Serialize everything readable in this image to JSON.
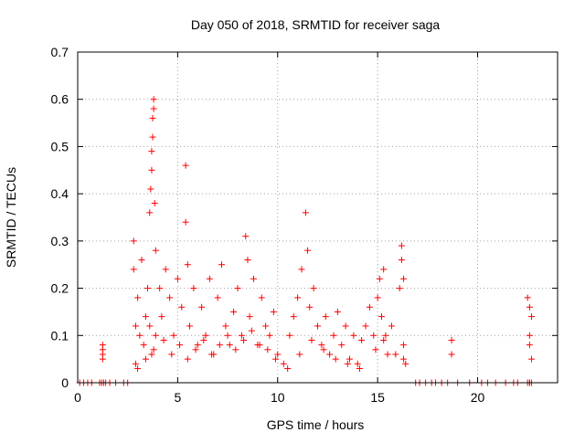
{
  "chart_data": {
    "type": "scatter",
    "title": "Day 050 of 2018, SRMTID for receiver saga",
    "xlabel": "GPS time / hours",
    "ylabel": "SRMTID / TECUs",
    "xlim": [
      0,
      24
    ],
    "ylim": [
      0,
      0.7
    ],
    "xticks": [
      0,
      5,
      10,
      15,
      20
    ],
    "yticks": [
      0,
      0.1,
      0.2,
      0.3,
      0.4,
      0.5,
      0.6,
      0.7
    ],
    "xtick_labels": [
      "0",
      "5",
      "10",
      "15",
      "20"
    ],
    "ytick_labels": [
      "0",
      "0.1",
      "0.2",
      "0.3",
      "0.4",
      "0.5",
      "0.6",
      "0.7"
    ],
    "grid": true,
    "legend": "none",
    "marker": "plus",
    "color": "#ff0000",
    "series": [
      {
        "x": [
          0.1,
          0.3,
          0.5,
          0.7,
          1.1,
          1.2,
          1.3,
          1.4,
          1.6,
          1.9,
          2.3,
          2.5,
          1.25,
          1.25,
          1.25,
          1.25,
          2.8,
          2.8,
          2.9,
          2.9,
          3.0,
          3.1,
          3.2,
          3.3,
          3.4,
          3.5,
          3.6,
          3.7,
          3.9,
          3.6,
          3.65,
          3.7,
          3.7,
          3.75,
          3.75,
          3.8,
          3.8,
          3.85,
          3.9,
          4.1,
          4.2,
          4.4,
          4.6,
          4.8,
          5.0,
          5.2,
          5.4,
          5.4,
          5.5,
          5.6,
          5.8,
          6.0,
          6.2,
          6.4,
          6.6,
          6.8,
          7.0,
          7.2,
          7.4,
          7.6,
          7.8,
          8.0,
          8.2,
          8.4,
          8.5,
          8.6,
          8.8,
          9.0,
          9.2,
          9.4,
          9.6,
          9.8,
          10.0,
          10.3,
          10.6,
          10.8,
          11.0,
          11.2,
          11.4,
          11.5,
          11.6,
          11.8,
          12.0,
          12.2,
          12.4,
          12.6,
          12.8,
          13.0,
          13.2,
          13.4,
          13.6,
          13.8,
          14.0,
          14.2,
          14.4,
          14.6,
          14.8,
          15.0,
          15.1,
          15.2,
          15.3,
          15.4,
          15.5,
          15.7,
          16.1,
          16.2,
          16.2,
          16.3,
          16.3,
          16.4,
          16.9,
          17.1,
          17.4,
          17.7,
          17.9,
          18.2,
          18.5,
          18.7,
          18.7,
          19.0,
          19.6,
          20.2,
          20.5,
          20.9,
          21.4,
          21.8,
          22.0,
          22.5,
          22.6,
          22.6,
          22.7,
          22.5,
          22.6,
          22.7,
          22.6,
          22.6,
          22.7,
          3.0,
          3.4,
          3.8,
          4.3,
          4.7,
          5.1,
          5.5,
          5.9,
          6.3,
          6.7,
          7.1,
          7.5,
          7.9,
          8.3,
          8.7,
          9.1,
          9.5,
          9.9,
          10.5,
          11.1,
          11.7,
          12.3,
          12.9,
          13.5,
          14.1,
          14.9,
          15.3,
          15.9,
          16.3
        ],
        "y": [
          0,
          0,
          0,
          0,
          0,
          0,
          0,
          0,
          0,
          0,
          0,
          0,
          0.08,
          0.07,
          0.06,
          0.05,
          0.3,
          0.24,
          0.12,
          0.04,
          0.18,
          0.1,
          0.26,
          0.08,
          0.14,
          0.2,
          0.12,
          0.06,
          0.1,
          0.36,
          0.41,
          0.45,
          0.49,
          0.52,
          0.56,
          0.58,
          0.6,
          0.38,
          0.28,
          0.2,
          0.14,
          0.24,
          0.18,
          0.1,
          0.22,
          0.16,
          0.46,
          0.34,
          0.25,
          0.12,
          0.2,
          0.08,
          0.16,
          0.1,
          0.22,
          0.06,
          0.18,
          0.25,
          0.12,
          0.08,
          0.15,
          0.2,
          0.1,
          0.31,
          0.26,
          0.14,
          0.22,
          0.08,
          0.18,
          0.12,
          0.1,
          0.15,
          0.06,
          0.04,
          0.1,
          0.14,
          0.18,
          0.24,
          0.36,
          0.28,
          0.16,
          0.2,
          0.12,
          0.08,
          0.14,
          0.06,
          0.1,
          0.15,
          0.08,
          0.12,
          0.05,
          0.1,
          0.04,
          0.09,
          0.12,
          0.16,
          0.1,
          0.18,
          0.22,
          0.14,
          0.24,
          0.1,
          0.06,
          0.12,
          0.2,
          0.29,
          0.26,
          0.22,
          0.08,
          0.04,
          0,
          0,
          0,
          0,
          0,
          0,
          0,
          0.09,
          0.06,
          0,
          0,
          0,
          0,
          0,
          0,
          0,
          0,
          0,
          0,
          0,
          0,
          0.18,
          0.16,
          0.14,
          0.1,
          0.08,
          0.05,
          0.03,
          0.05,
          0.07,
          0.09,
          0.06,
          0.08,
          0.05,
          0.07,
          0.09,
          0.06,
          0.08,
          0.1,
          0.07,
          0.09,
          0.11,
          0.08,
          0.07,
          0.05,
          0.03,
          0.06,
          0.09,
          0.07,
          0.05,
          0.04,
          0.03,
          0.07,
          0.09,
          0.06,
          0.05
        ]
      }
    ]
  }
}
